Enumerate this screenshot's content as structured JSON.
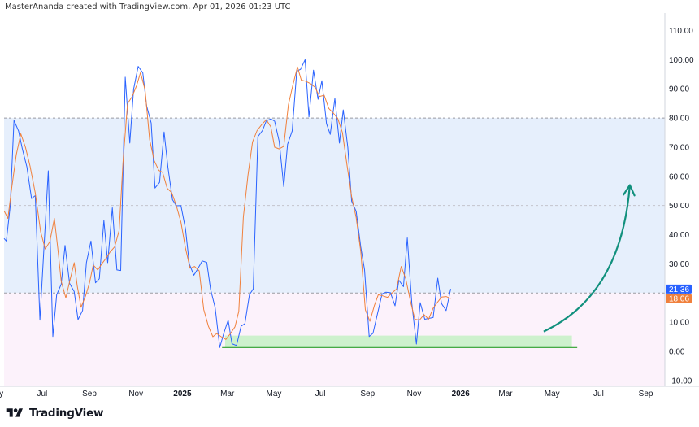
{
  "header": {
    "attribution": "MasterAnanda created with TradingView.com, Apr 01, 2026 01:23 UTC"
  },
  "brand": {
    "name": "TradingView",
    "logo": "tradingview-logo"
  },
  "chart_data": {
    "type": "line",
    "title": "",
    "xlabel": "",
    "ylabel": "",
    "ylim": [
      -12,
      116
    ],
    "y_ticks": [
      "110.00",
      "100.00",
      "90.00",
      "80.00",
      "70.00",
      "60.00",
      "50.00",
      "40.00",
      "30.00",
      "20.00",
      "10.00",
      "0.00",
      "-10.00"
    ],
    "x_start": "2024-05-12",
    "x_end": "2026-09-26",
    "x_ticks": [
      {
        "label": "May",
        "date": "2024-05-01"
      },
      {
        "label": "Jul",
        "date": "2024-07-01"
      },
      {
        "label": "Sep",
        "date": "2024-09-01"
      },
      {
        "label": "Nov",
        "date": "2024-11-01"
      },
      {
        "label": "2025",
        "date": "2025-01-01",
        "bold": true
      },
      {
        "label": "Mar",
        "date": "2025-03-01"
      },
      {
        "label": "May",
        "date": "2025-05-01"
      },
      {
        "label": "Jul",
        "date": "2025-07-01"
      },
      {
        "label": "Sep",
        "date": "2025-09-01"
      },
      {
        "label": "Nov",
        "date": "2025-11-01"
      },
      {
        "label": "2026",
        "date": "2026-01-01",
        "bold": true
      },
      {
        "label": "Mar",
        "date": "2026-03-01"
      },
      {
        "label": "May",
        "date": "2026-05-01"
      },
      {
        "label": "Jul",
        "date": "2026-07-01"
      },
      {
        "label": "Sep",
        "date": "2026-09-01"
      }
    ],
    "bands": [
      {
        "from": 20,
        "to": 80,
        "color": "#e6effc"
      },
      {
        "from": -12,
        "to": 20,
        "color": "#fcf2fb"
      }
    ],
    "levels": [
      {
        "value": 80,
        "color": "#9a9ba2"
      },
      {
        "value": 50,
        "color": "#c3c4cb"
      },
      {
        "value": 20,
        "color": "#9a9ba2"
      }
    ],
    "support_zone": {
      "from_date": "2025-02-26",
      "to_date": "2026-05-27",
      "low": 1.3,
      "high": 5.4,
      "fill": "#cdf1cd",
      "line": "#2ca02c",
      "line_from_date": "2025-02-22",
      "line_to_date": "2026-06-03"
    },
    "arrow": {
      "from_date": "2026-04-20",
      "from_value": 6.8,
      "to_date": "2026-08-11",
      "to_value": 57,
      "color": "#11907d"
    },
    "series": [
      {
        "color": "#2962ff",
        "last_label": "21.36",
        "points": [
          [
            "2024-05-12",
            38.7
          ],
          [
            "2024-05-15",
            37.8
          ],
          [
            "2024-05-20",
            49.6
          ],
          [
            "2024-05-25",
            79.2
          ],
          [
            "2024-05-31",
            75.6
          ],
          [
            "2024-06-05",
            69.4
          ],
          [
            "2024-06-11",
            63.2
          ],
          [
            "2024-06-17",
            52.4
          ],
          [
            "2024-06-22",
            53.4
          ],
          [
            "2024-06-28",
            10.7
          ],
          [
            "2024-07-03",
            34.1
          ],
          [
            "2024-07-09",
            61.9
          ],
          [
            "2024-07-15",
            5.1
          ],
          [
            "2024-07-20",
            19.4
          ],
          [
            "2024-07-26",
            23.0
          ],
          [
            "2024-07-31",
            36.3
          ],
          [
            "2024-08-06",
            23.3
          ],
          [
            "2024-08-12",
            20.5
          ],
          [
            "2024-08-17",
            10.9
          ],
          [
            "2024-08-23",
            14.0
          ],
          [
            "2024-08-28",
            30.4
          ],
          [
            "2024-09-03",
            37.8
          ],
          [
            "2024-09-09",
            23.5
          ],
          [
            "2024-09-14",
            24.9
          ],
          [
            "2024-09-20",
            44.9
          ],
          [
            "2024-09-25",
            30.4
          ],
          [
            "2024-10-01",
            49.2
          ],
          [
            "2024-10-07",
            27.9
          ],
          [
            "2024-10-12",
            27.7
          ],
          [
            "2024-10-18",
            94.0
          ],
          [
            "2024-10-24",
            71.4
          ],
          [
            "2024-10-29",
            89.9
          ],
          [
            "2024-11-04",
            97.7
          ],
          [
            "2024-11-10",
            95.5
          ],
          [
            "2024-11-15",
            84.2
          ],
          [
            "2024-11-21",
            78.3
          ],
          [
            "2024-11-26",
            56.0
          ],
          [
            "2024-12-02",
            57.9
          ],
          [
            "2024-12-08",
            75.2
          ],
          [
            "2024-12-13",
            63.1
          ],
          [
            "2024-12-19",
            52.0
          ],
          [
            "2024-12-24",
            49.9
          ],
          [
            "2024-12-30",
            50.0
          ],
          [
            "2025-01-05",
            42.0
          ],
          [
            "2025-01-10",
            30.0
          ],
          [
            "2025-01-16",
            26.1
          ],
          [
            "2025-01-21",
            28.2
          ],
          [
            "2025-01-27",
            31.0
          ],
          [
            "2025-02-02",
            30.5
          ],
          [
            "2025-02-07",
            21.2
          ],
          [
            "2025-02-13",
            15.0
          ],
          [
            "2025-02-19",
            1.3
          ],
          [
            "2025-02-24",
            6.0
          ],
          [
            "2025-03-02",
            10.7
          ],
          [
            "2025-03-07",
            2.6
          ],
          [
            "2025-03-13",
            2.0
          ],
          [
            "2025-03-19",
            8.6
          ],
          [
            "2025-03-24",
            9.5
          ],
          [
            "2025-03-30",
            19.4
          ],
          [
            "2025-04-04",
            21.4
          ],
          [
            "2025-04-10",
            73.6
          ],
          [
            "2025-04-16",
            75.7
          ],
          [
            "2025-04-21",
            79.0
          ],
          [
            "2025-04-27",
            79.7
          ],
          [
            "2025-05-02",
            78.9
          ],
          [
            "2025-05-08",
            72.0
          ],
          [
            "2025-05-14",
            56.5
          ],
          [
            "2025-05-19",
            71.0
          ],
          [
            "2025-05-25",
            75.6
          ],
          [
            "2025-05-31",
            96.0
          ],
          [
            "2025-06-05",
            96.7
          ],
          [
            "2025-06-11",
            100.0
          ],
          [
            "2025-06-16",
            80.4
          ],
          [
            "2025-06-22",
            96.4
          ],
          [
            "2025-06-28",
            86.4
          ],
          [
            "2025-07-03",
            92.8
          ],
          [
            "2025-07-09",
            78.1
          ],
          [
            "2025-07-14",
            74.4
          ],
          [
            "2025-07-20",
            86.7
          ],
          [
            "2025-07-26",
            71.4
          ],
          [
            "2025-07-31",
            82.8
          ],
          [
            "2025-08-06",
            70.0
          ],
          [
            "2025-08-11",
            51.5
          ],
          [
            "2025-08-17",
            48.0
          ],
          [
            "2025-08-23",
            35.7
          ],
          [
            "2025-08-28",
            28.0
          ],
          [
            "2025-09-03",
            5.1
          ],
          [
            "2025-09-08",
            6.2
          ],
          [
            "2025-09-14",
            13.0
          ],
          [
            "2025-09-20",
            19.7
          ],
          [
            "2025-09-25",
            20.3
          ],
          [
            "2025-10-01",
            20.1
          ],
          [
            "2025-10-07",
            15.6
          ],
          [
            "2025-10-12",
            24.4
          ],
          [
            "2025-10-18",
            22.2
          ],
          [
            "2025-10-23",
            38.9
          ],
          [
            "2025-10-29",
            16.3
          ],
          [
            "2025-11-04",
            2.5
          ],
          [
            "2025-11-09",
            16.7
          ],
          [
            "2025-11-15",
            11.0
          ],
          [
            "2025-11-21",
            11.3
          ],
          [
            "2025-11-26",
            11.6
          ],
          [
            "2025-12-02",
            25.1
          ],
          [
            "2025-12-07",
            16.4
          ],
          [
            "2025-12-13",
            14.0
          ],
          [
            "2025-12-19",
            21.4
          ]
        ]
      },
      {
        "color": "#f0803c",
        "last_label": "18.06",
        "points": [
          [
            "2024-05-12",
            48.2
          ],
          [
            "2024-05-17",
            45.6
          ],
          [
            "2024-05-22",
            56.0
          ],
          [
            "2024-05-28",
            67.4
          ],
          [
            "2024-06-03",
            74.6
          ],
          [
            "2024-06-09",
            70.0
          ],
          [
            "2024-06-15",
            63.6
          ],
          [
            "2024-06-22",
            54.3
          ],
          [
            "2024-06-29",
            41.0
          ],
          [
            "2024-07-05",
            35.1
          ],
          [
            "2024-07-11",
            37.6
          ],
          [
            "2024-07-17",
            45.6
          ],
          [
            "2024-07-22",
            34.0
          ],
          [
            "2024-07-26",
            24.0
          ],
          [
            "2024-08-01",
            18.3
          ],
          [
            "2024-08-06",
            23.9
          ],
          [
            "2024-08-12",
            30.4
          ],
          [
            "2024-08-16",
            22.5
          ],
          [
            "2024-08-21",
            15.1
          ],
          [
            "2024-08-27",
            19.0
          ],
          [
            "2024-09-01",
            23.4
          ],
          [
            "2024-09-06",
            29.6
          ],
          [
            "2024-09-12",
            27.9
          ],
          [
            "2024-09-17",
            29.9
          ],
          [
            "2024-09-23",
            32.0
          ],
          [
            "2024-09-28",
            34.0
          ],
          [
            "2024-10-04",
            35.8
          ],
          [
            "2024-10-10",
            41.5
          ],
          [
            "2024-10-15",
            64.7
          ],
          [
            "2024-10-21",
            84.9
          ],
          [
            "2024-10-27",
            87.3
          ],
          [
            "2024-11-02",
            91.2
          ],
          [
            "2024-11-07",
            95.6
          ],
          [
            "2024-11-13",
            89.6
          ],
          [
            "2024-11-19",
            72.6
          ],
          [
            "2024-11-25",
            65.4
          ],
          [
            "2024-12-01",
            62.0
          ],
          [
            "2024-12-06",
            61.4
          ],
          [
            "2024-12-12",
            55.9
          ],
          [
            "2024-12-18",
            54.4
          ],
          [
            "2024-12-24",
            50.0
          ],
          [
            "2024-12-30",
            44.3
          ],
          [
            "2025-01-05",
            35.4
          ],
          [
            "2025-01-11",
            28.5
          ],
          [
            "2025-01-17",
            29.1
          ],
          [
            "2025-01-23",
            27.6
          ],
          [
            "2025-01-29",
            14.3
          ],
          [
            "2025-02-04",
            8.7
          ],
          [
            "2025-02-10",
            5.0
          ],
          [
            "2025-02-15",
            6.1
          ],
          [
            "2025-02-21",
            5.0
          ],
          [
            "2025-02-27",
            4.1
          ],
          [
            "2025-03-05",
            6.1
          ],
          [
            "2025-03-11",
            8.4
          ],
          [
            "2025-03-16",
            13.7
          ],
          [
            "2025-03-22",
            46.0
          ],
          [
            "2025-03-28",
            60.4
          ],
          [
            "2025-04-03",
            71.8
          ],
          [
            "2025-04-09",
            75.7
          ],
          [
            "2025-04-15",
            77.7
          ],
          [
            "2025-04-21",
            79.4
          ],
          [
            "2025-04-27",
            77.0
          ],
          [
            "2025-05-02",
            70.0
          ],
          [
            "2025-05-08",
            69.4
          ],
          [
            "2025-05-14",
            70.3
          ],
          [
            "2025-05-20",
            84.5
          ],
          [
            "2025-05-26",
            91.4
          ],
          [
            "2025-06-01",
            97.5
          ],
          [
            "2025-06-06",
            93.0
          ],
          [
            "2025-06-12",
            92.6
          ],
          [
            "2025-06-18",
            91.8
          ],
          [
            "2025-06-24",
            90.5
          ],
          [
            "2025-06-30",
            87.4
          ],
          [
            "2025-07-06",
            87.8
          ],
          [
            "2025-07-12",
            83.3
          ],
          [
            "2025-07-18",
            81.7
          ],
          [
            "2025-07-24",
            79.7
          ],
          [
            "2025-07-30",
            75.0
          ],
          [
            "2025-08-05",
            63.7
          ],
          [
            "2025-08-11",
            53.1
          ],
          [
            "2025-08-17",
            45.8
          ],
          [
            "2025-08-23",
            34.1
          ],
          [
            "2025-08-29",
            14.2
          ],
          [
            "2025-09-04",
            10.3
          ],
          [
            "2025-09-10",
            15.8
          ],
          [
            "2025-09-15",
            19.4
          ],
          [
            "2025-09-21",
            19.0
          ],
          [
            "2025-09-27",
            18.5
          ],
          [
            "2025-10-03",
            20.0
          ],
          [
            "2025-10-09",
            21.4
          ],
          [
            "2025-10-15",
            29.1
          ],
          [
            "2025-10-21",
            24.9
          ],
          [
            "2025-10-27",
            17.4
          ],
          [
            "2025-11-02",
            11.0
          ],
          [
            "2025-11-08",
            10.7
          ],
          [
            "2025-11-14",
            12.6
          ],
          [
            "2025-11-20",
            11.0
          ],
          [
            "2025-11-26",
            14.8
          ],
          [
            "2025-12-01",
            16.6
          ],
          [
            "2025-12-07",
            18.6
          ],
          [
            "2025-12-13",
            18.8
          ],
          [
            "2025-12-19",
            18.1
          ]
        ]
      }
    ]
  }
}
